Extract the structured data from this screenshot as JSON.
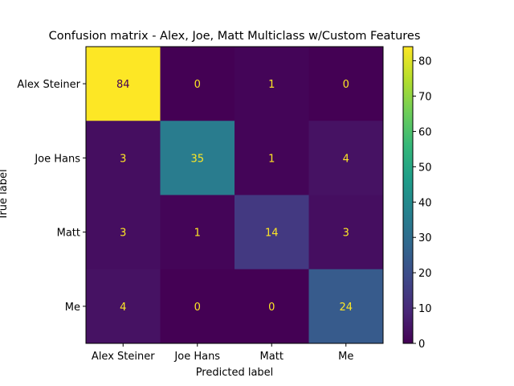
{
  "chart_data": {
    "type": "heatmap",
    "title": "Confusion matrix - Alex, Joe, Matt Multiclass w/Custom Features",
    "xlabel": "Predicted label",
    "ylabel": "True label",
    "x_categories": [
      "Alex Steiner",
      "Joe Hans",
      "Matt",
      "Me"
    ],
    "y_categories": [
      "Alex Steiner",
      "Joe Hans",
      "Matt",
      "Me"
    ],
    "values": [
      [
        84,
        0,
        1,
        0
      ],
      [
        3,
        35,
        1,
        4
      ],
      [
        3,
        1,
        14,
        3
      ],
      [
        4,
        0,
        0,
        24
      ]
    ],
    "colormap": "viridis",
    "colorbar": {
      "range": [
        0,
        84
      ],
      "ticks": [
        0,
        10,
        20,
        30,
        40,
        50,
        60,
        70,
        80
      ]
    }
  }
}
